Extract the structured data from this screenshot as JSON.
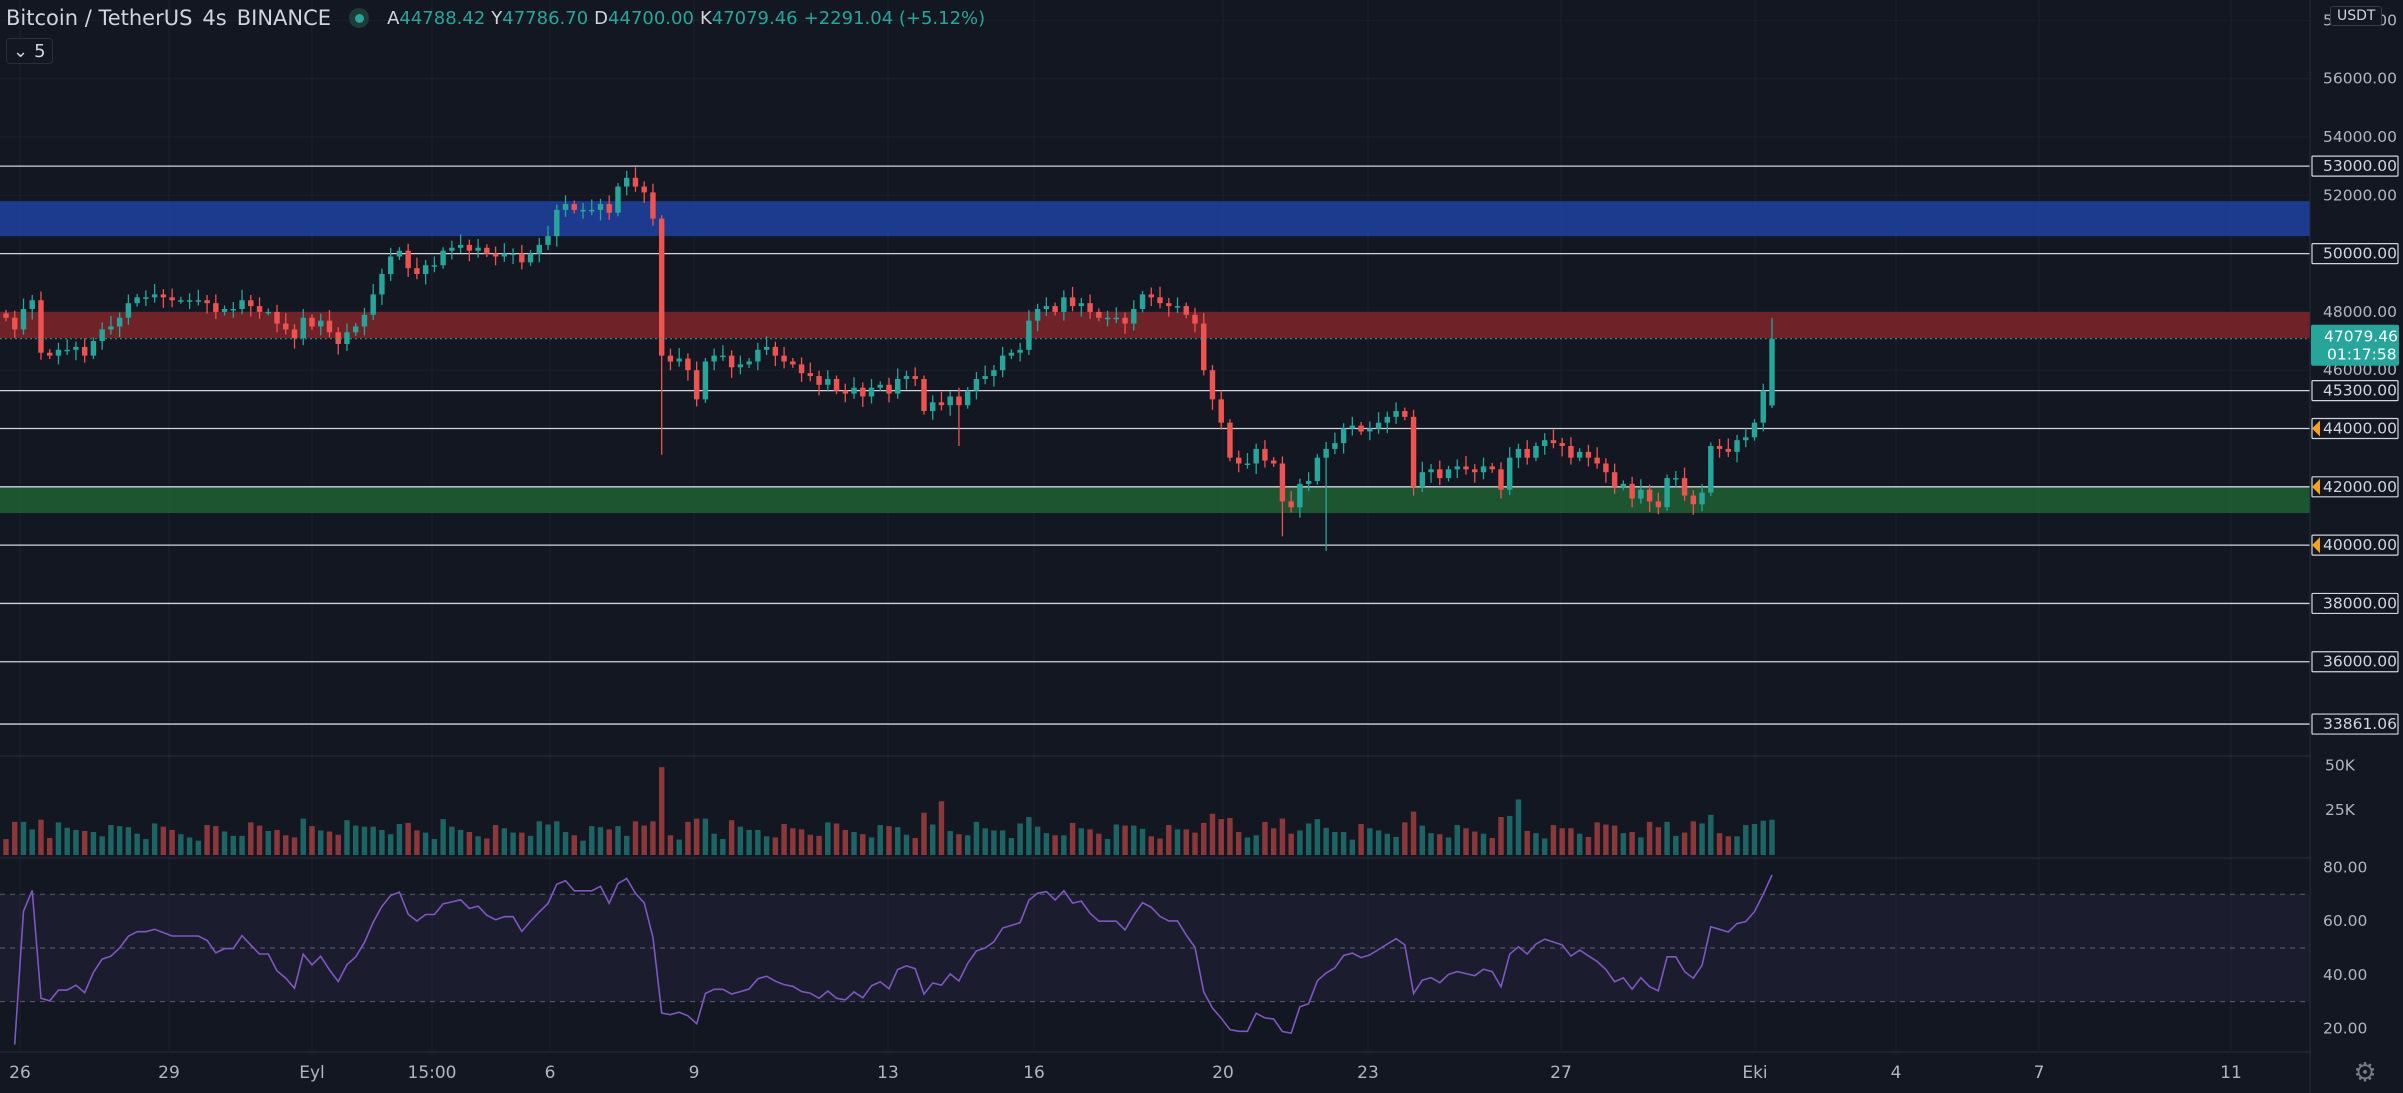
{
  "header": {
    "symbol": "Bitcoin / TetherUS",
    "timeframe": "4s",
    "exchange": "BINANCE",
    "ohlc": [
      {
        "key": "A",
        "value": "44788.42"
      },
      {
        "key": "Y",
        "value": "47786.70"
      },
      {
        "key": "D",
        "value": "44700.00"
      },
      {
        "key": "K",
        "value": "47079.46"
      }
    ],
    "change": "+2291.04 (+5.12%)",
    "indicator_badge": "5"
  },
  "currency": "USDT",
  "colors": {
    "background": "#131722",
    "up": "#26a69a",
    "down": "#ef5350",
    "rsi_line": "#7e57c2",
    "resistance_zone_blue": "#1e3f9a",
    "resistance_zone_red": "#7a2329",
    "support_zone_green": "#1f5c33"
  },
  "chart_data": [
    {
      "type": "candlestick",
      "title": "Bitcoin / TetherUS 4s BINANCE",
      "y_axis_labels": [
        "58000.00",
        "56000.00",
        "54000.00",
        "52000.00",
        "50000.00",
        "48000.00",
        "46000.00",
        "44000.00",
        "42000.00",
        "40000.00",
        "38000.00",
        "36000.00"
      ],
      "x_axis_labels": [
        "26",
        "29",
        "Eyl",
        "15:00",
        "6",
        "9",
        "13",
        "16",
        "20",
        "23",
        "27",
        "Eki",
        "4",
        "7",
        "11"
      ],
      "ylim": [
        32800,
        58700
      ],
      "last_price_label": "47079.46",
      "countdown_label": "01:17:58",
      "horizontal_levels": [
        {
          "value": 53000,
          "label": "53000.00"
        },
        {
          "value": 50000,
          "label": "50000.00"
        },
        {
          "value": 45300,
          "label": "45300.00"
        },
        {
          "value": 44000,
          "label": "44000.00"
        },
        {
          "value": 42000,
          "label": "42000.00"
        },
        {
          "value": 40000,
          "label": "40000.00"
        },
        {
          "value": 38000,
          "label": "38000.00"
        },
        {
          "value": 36000,
          "label": "36000.00"
        },
        {
          "value": 33861.06,
          "label": "33861.06"
        }
      ],
      "alert_markers": [
        44000,
        42000,
        40000
      ],
      "zones": [
        {
          "from": 50600,
          "to": 51800,
          "color": "blue"
        },
        {
          "from": 47100,
          "to": 48000,
          "color": "red"
        },
        {
          "from": 41100,
          "to": 42000,
          "color": "green"
        }
      ],
      "close_series": [
        47800,
        47400,
        48100,
        48400,
        46600,
        46500,
        46700,
        46700,
        46800,
        46500,
        47000,
        47400,
        47500,
        47800,
        48300,
        48500,
        48500,
        48600,
        48500,
        48400,
        48400,
        48400,
        48400,
        48300,
        48000,
        48100,
        48100,
        48400,
        48200,
        48000,
        48000,
        47600,
        47400,
        47100,
        47800,
        47500,
        47700,
        47300,
        46900,
        47300,
        47500,
        47900,
        48600,
        49300,
        49900,
        50100,
        49500,
        49300,
        49600,
        49600,
        50100,
        50200,
        50300,
        50100,
        50200,
        50000,
        49900,
        50000,
        50000,
        49700,
        50000,
        50300,
        50600,
        51500,
        51700,
        51500,
        51500,
        51500,
        51700,
        51400,
        52300,
        52600,
        52300,
        52100,
        51200,
        46500,
        46300,
        46400,
        46000,
        45000,
        46300,
        46500,
        46500,
        46100,
        46200,
        46300,
        46700,
        46800,
        46500,
        46300,
        46200,
        45900,
        45800,
        45500,
        45700,
        45300,
        45200,
        45400,
        45100,
        45400,
        45500,
        45200,
        45700,
        45800,
        45700,
        44600,
        44900,
        44800,
        45100,
        44800,
        45300,
        45700,
        45800,
        46000,
        46500,
        46600,
        46700,
        47700,
        48100,
        48200,
        48000,
        48500,
        48200,
        48300,
        48000,
        47800,
        47800,
        47800,
        47600,
        48100,
        48600,
        48500,
        48300,
        48200,
        48200,
        47900,
        47600,
        46000,
        45000,
        44200,
        43000,
        42800,
        42800,
        43300,
        42900,
        42800,
        41500,
        41300,
        42100,
        42200,
        43000,
        43300,
        43500,
        44000,
        44100,
        43900,
        44000,
        44200,
        44400,
        44600,
        44400,
        42000,
        42500,
        42600,
        42300,
        42600,
        42700,
        42600,
        42500,
        42700,
        42600,
        41900,
        43000,
        43300,
        43000,
        43400,
        43600,
        43500,
        43400,
        43000,
        43200,
        43000,
        42800,
        42500,
        42000,
        42100,
        41600,
        41900,
        41500,
        41300,
        42300,
        42300,
        41700,
        41400,
        41800,
        43400,
        43300,
        43200,
        43600,
        43700,
        44200,
        45300,
        47079.46
      ]
    },
    {
      "type": "bar",
      "title": "Volume",
      "y_axis_labels": [
        "50K",
        "25K"
      ],
      "ylim": [
        0,
        53000
      ],
      "spikes": [
        {
          "index": 75,
          "value": 49000
        },
        {
          "index": 107,
          "value": 30000
        },
        {
          "index": 173,
          "value": 31000
        }
      ]
    },
    {
      "type": "line",
      "title": "RSI",
      "y_axis_labels": [
        "80.00",
        "60.00",
        "40.00",
        "20.00"
      ],
      "ylim": [
        12,
        82
      ],
      "bands": [
        70,
        50,
        30
      ]
    }
  ],
  "settings_icon": "gear-icon"
}
